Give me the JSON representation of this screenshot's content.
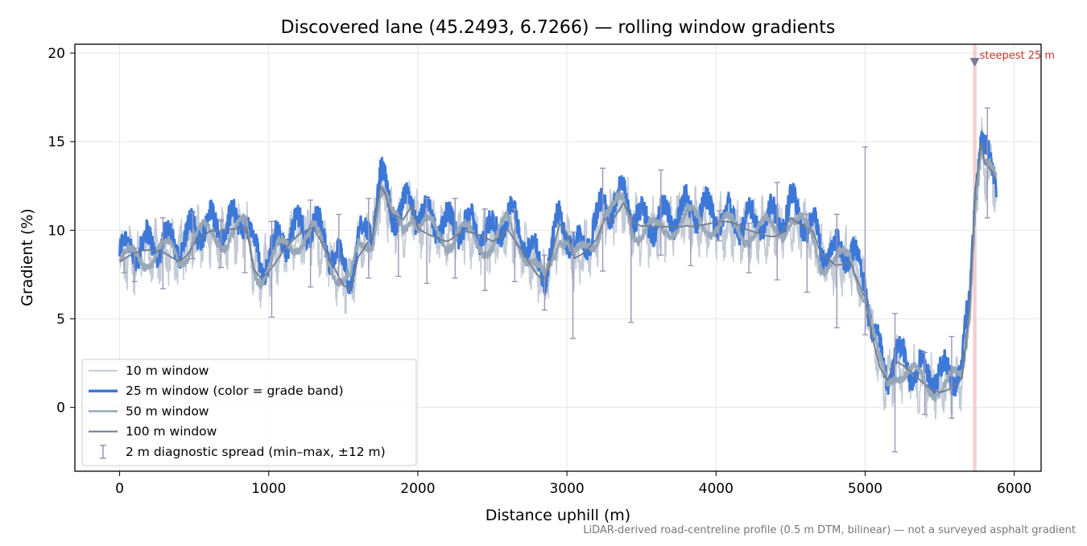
{
  "chart_data": {
    "type": "line",
    "title": "Discovered lane (45.2493, 6.7266) — rolling window gradients",
    "xlabel": "Distance uphill (m)",
    "ylabel": "Gradient (%)",
    "xlim": [
      -300,
      6180
    ],
    "ylim": [
      -3.6,
      20.5
    ],
    "x_ticks": [
      0,
      1000,
      2000,
      3000,
      4000,
      5000,
      6000
    ],
    "x_tick_labels": [
      "0",
      "1000",
      "2000",
      "3000",
      "4000",
      "5000",
      "6000"
    ],
    "y_ticks": [
      0,
      5,
      10,
      15,
      20
    ],
    "y_tick_labels": [
      "0",
      "5",
      "10",
      "15",
      "20"
    ],
    "grid": true,
    "legend_position": "lower-left",
    "profile_x": [
      0,
      100,
      200,
      300,
      400,
      450,
      500,
      600,
      700,
      800,
      850,
      900,
      950,
      1000,
      1100,
      1200,
      1300,
      1400,
      1500,
      1550,
      1600,
      1700,
      1750,
      1780,
      1820,
      1900,
      1960,
      2000,
      2100,
      2200,
      2300,
      2400,
      2500,
      2550,
      2600,
      2700,
      2750,
      2800,
      2850,
      2900,
      2950,
      3000,
      3050,
      3100,
      3200,
      3250,
      3300,
      3380,
      3450,
      3500,
      3600,
      3700,
      3800,
      3900,
      4000,
      4100,
      4200,
      4300,
      4400,
      4450,
      4500,
      4550,
      4600,
      4650,
      4700,
      4800,
      4900,
      5000,
      5050,
      5100,
      5150,
      5200,
      5300,
      5400,
      5500,
      5600,
      5650,
      5700,
      5740,
      5780,
      5800,
      5850,
      5880
    ],
    "profile_y": [
      8.2,
      8.4,
      8.6,
      8.8,
      8.6,
      8.9,
      9.5,
      9.8,
      9.6,
      9.9,
      10.2,
      8.0,
      7.6,
      8.0,
      9.0,
      9.5,
      9.8,
      8.5,
      7.2,
      7.0,
      8.8,
      9.8,
      12.3,
      11.8,
      10.6,
      10.3,
      11.3,
      10.2,
      10.0,
      9.6,
      9.8,
      9.4,
      9.2,
      9.6,
      10.3,
      9.2,
      8.4,
      7.6,
      7.0,
      8.4,
      10.0,
      9.5,
      8.2,
      8.6,
      9.8,
      11.0,
      10.8,
      11.6,
      10.2,
      9.9,
      9.9,
      10.3,
      10.6,
      10.5,
      10.3,
      10.1,
      9.9,
      10.0,
      10.0,
      10.2,
      10.8,
      10.3,
      9.9,
      9.6,
      8.4,
      8.0,
      8.5,
      6.5,
      4.0,
      2.2,
      1.3,
      2.3,
      1.8,
      1.4,
      1.2,
      1.4,
      1.7,
      5.5,
      12.2,
      14.6,
      13.5,
      13.0,
      12.6
    ],
    "series": [
      {
        "name": "10 m window",
        "color": "#c3cbd6",
        "window_m": 10
      },
      {
        "name": "25 m window (color = grade band)",
        "color": "#3c78d8",
        "window_m": 25
      },
      {
        "name": "50 m window",
        "color": "#98a8b8",
        "window_m": 50
      },
      {
        "name": "100 m window",
        "color": "#6e7b8e",
        "window_m": 100
      },
      {
        "name": "2 m diagnostic spread (min–max, ±12 m)",
        "color": "#9d94b8",
        "type": "errorbar"
      }
    ],
    "diagnostic_spread": [
      {
        "x": 30,
        "low": 7.6,
        "high": 8.7
      },
      {
        "x": 100,
        "low": 7.1,
        "high": 9.0
      },
      {
        "x": 290,
        "low": 6.7,
        "high": 10.7
      },
      {
        "x": 490,
        "low": 8.4,
        "high": 11.0
      },
      {
        "x": 680,
        "low": 8.9,
        "high": 10.6
      },
      {
        "x": 680,
        "low": 7.9,
        "high": 10.5
      },
      {
        "x": 840,
        "low": 7.6,
        "high": 10.6
      },
      {
        "x": 1020,
        "low": 5.1,
        "high": 10.5
      },
      {
        "x": 1280,
        "low": 6.8,
        "high": 11.7
      },
      {
        "x": 1470,
        "low": 7.0,
        "high": 10.9
      },
      {
        "x": 1670,
        "low": 7.3,
        "high": 11.8
      },
      {
        "x": 1870,
        "low": 7.4,
        "high": 10.5
      },
      {
        "x": 2060,
        "low": 7.0,
        "high": 11.8
      },
      {
        "x": 2250,
        "low": 7.3,
        "high": 11.8
      },
      {
        "x": 2450,
        "low": 6.6,
        "high": 11.2
      },
      {
        "x": 2650,
        "low": 7.1,
        "high": 11.2
      },
      {
        "x": 2850,
        "low": 5.5,
        "high": 8.6
      },
      {
        "x": 3040,
        "low": 3.9,
        "high": 9.9
      },
      {
        "x": 3240,
        "low": 7.7,
        "high": 13.5
      },
      {
        "x": 3430,
        "low": 4.8,
        "high": 10.8
      },
      {
        "x": 3630,
        "low": 8.6,
        "high": 13.4
      },
      {
        "x": 3830,
        "low": 8.0,
        "high": 10.7
      },
      {
        "x": 4020,
        "low": 9.4,
        "high": 11.1
      },
      {
        "x": 4220,
        "low": 7.6,
        "high": 10.4
      },
      {
        "x": 4410,
        "low": 7.2,
        "high": 12.7
      },
      {
        "x": 4610,
        "low": 6.5,
        "high": 10.9
      },
      {
        "x": 4810,
        "low": 4.5,
        "high": 10.9
      },
      {
        "x": 5000,
        "low": 4.1,
        "high": 14.7
      },
      {
        "x": 5200,
        "low": -2.5,
        "high": 5.3
      },
      {
        "x": 5400,
        "low": -0.4,
        "high": 3.1
      },
      {
        "x": 5580,
        "low": -0.6,
        "high": 4.0
      },
      {
        "x": 5820,
        "low": 10.7,
        "high": 16.9
      }
    ],
    "steepest_marker": {
      "label": "steepest 25 m",
      "x": 5735,
      "y": 19.5,
      "span": [
        5723,
        5747
      ]
    }
  },
  "footnote": "LiDAR-derived road-centreline profile (0.5 m DTM, bilinear) — not a surveyed asphalt gradient"
}
